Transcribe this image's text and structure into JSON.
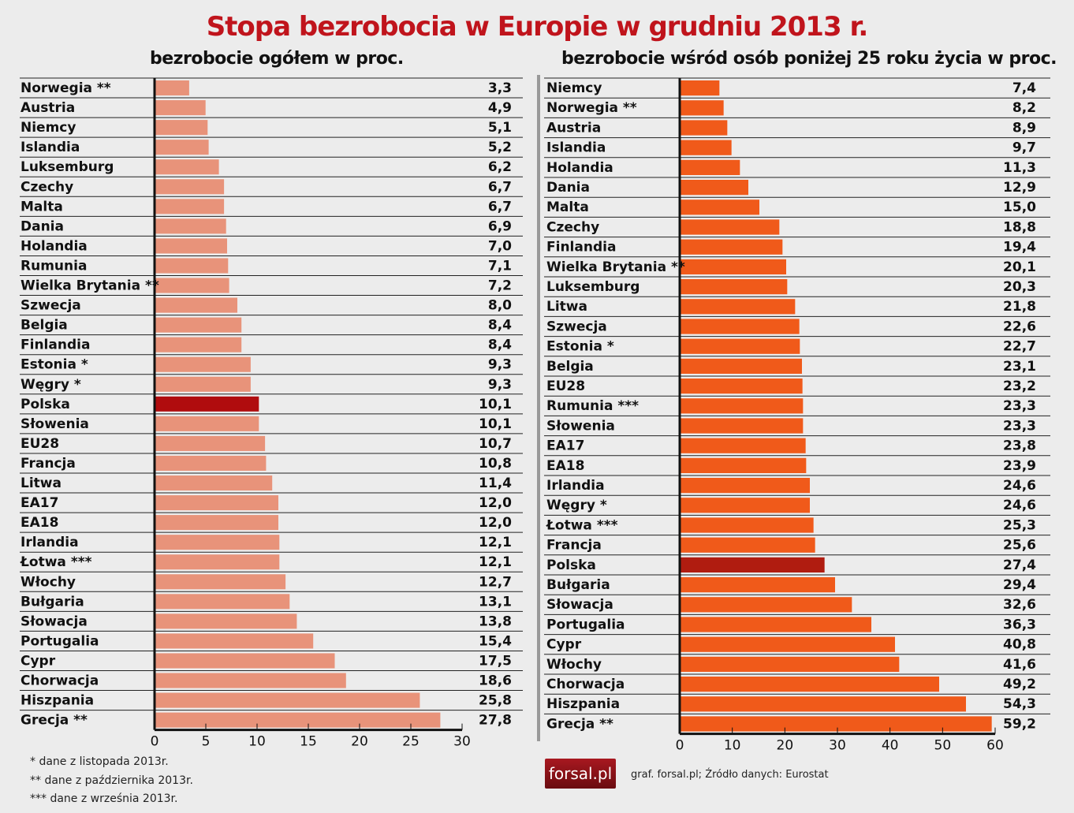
{
  "chart_data": [
    {
      "type": "bar",
      "orientation": "horizontal",
      "title": "Stopa bezrobocia w Europie w grudniu 2013 r.",
      "subtitle": "bezrobocie ogółem w proc.",
      "xlim": [
        0,
        30
      ],
      "xticks": [
        0,
        5,
        10,
        15,
        20,
        25,
        30
      ],
      "bar_color": "#e8937a",
      "highlight_color": "#b00c0e",
      "highlight": "Polska",
      "categories": [
        "Norwegia **",
        "Austria",
        "Niemcy",
        "Islandia",
        "Luksemburg",
        "Czechy",
        "Malta",
        "Dania",
        "Holandia",
        "Rumunia",
        "Wielka Brytania **",
        "Szwecja",
        "Belgia",
        "Finlandia",
        "Estonia *",
        "Węgry *",
        "Polska",
        "Słowenia",
        "EU28",
        "Francja",
        "Litwa",
        "EA17",
        "EA18",
        "Irlandia",
        "Łotwa ***",
        "Włochy",
        "Bułgaria",
        "Słowacja",
        "Portugalia",
        "Cypr",
        "Chorwacja",
        "Hiszpania",
        "Grecja **"
      ],
      "values": [
        3.3,
        4.9,
        5.1,
        5.2,
        6.2,
        6.7,
        6.7,
        6.9,
        7.0,
        7.1,
        7.2,
        8.0,
        8.4,
        8.4,
        9.3,
        9.3,
        10.1,
        10.1,
        10.7,
        10.8,
        11.4,
        12.0,
        12.0,
        12.1,
        12.1,
        12.7,
        13.1,
        13.8,
        15.4,
        17.5,
        18.6,
        25.8,
        27.8
      ],
      "labels": [
        "3,3",
        "4,9",
        "5,1",
        "5,2",
        "6,2",
        "6,7",
        "6,7",
        "6,9",
        "7,0",
        "7,1",
        "7,2",
        "8,0",
        "8,4",
        "8,4",
        "9,3",
        "9,3",
        "10,1",
        "10,1",
        "10,7",
        "10,8",
        "11,4",
        "12,0",
        "12,0",
        "12,1",
        "12,1",
        "12,7",
        "13,1",
        "13,8",
        "15,4",
        "17,5",
        "18,6",
        "25,8",
        "27,8"
      ]
    },
    {
      "type": "bar",
      "orientation": "horizontal",
      "subtitle": "bezrobocie wśród osób poniżej 25 roku życia w proc.",
      "xlim": [
        0,
        60
      ],
      "xticks": [
        0,
        10,
        20,
        30,
        40,
        50,
        60
      ],
      "bar_color": "#f05a1a",
      "highlight_color": "#b01c10",
      "highlight": "Polska",
      "categories": [
        "Niemcy",
        "Norwegia **",
        "Austria",
        "Islandia",
        "Holandia",
        "Dania",
        "Malta",
        "Czechy",
        "Finlandia",
        "Wielka Brytania **",
        "Luksemburg",
        "Litwa",
        "Szwecja",
        "Estonia *",
        "Belgia",
        "EU28",
        "Rumunia ***",
        "Słowenia",
        "EA17",
        "EA18",
        "Irlandia",
        "Węgry *",
        "Łotwa ***",
        "Francja",
        "Polska",
        "Bułgaria",
        "Słowacja",
        "Portugalia",
        "Cypr",
        "Włochy",
        "Chorwacja",
        "Hiszpania",
        "Grecja **"
      ],
      "values": [
        7.4,
        8.2,
        8.9,
        9.7,
        11.3,
        12.9,
        15.0,
        18.8,
        19.4,
        20.1,
        20.3,
        21.8,
        22.6,
        22.7,
        23.1,
        23.2,
        23.3,
        23.3,
        23.8,
        23.9,
        24.6,
        24.6,
        25.3,
        25.6,
        27.4,
        29.4,
        32.6,
        36.3,
        40.8,
        41.6,
        49.2,
        54.3,
        59.2
      ],
      "labels": [
        "7,4",
        "8,2",
        "8,9",
        "9,7",
        "11,3",
        "12,9",
        "15,0",
        "18,8",
        "19,4",
        "20,1",
        "20,3",
        "21,8",
        "22,6",
        "22,7",
        "23,1",
        "23,2",
        "23,3",
        "23,3",
        "23,8",
        "23,9",
        "24,6",
        "24,6",
        "25,3",
        "25,6",
        "27,4",
        "29,4",
        "32,6",
        "36,3",
        "40,8",
        "41,6",
        "49,2",
        "54,3",
        "59,2"
      ]
    }
  ],
  "notes": [
    "* dane z listopada 2013r.",
    "** dane z października 2013r.",
    "*** dane z września 2013r."
  ],
  "logo": "forsal.pl",
  "source": "graf. forsal.pl;  Źródło danych: Eurostat"
}
